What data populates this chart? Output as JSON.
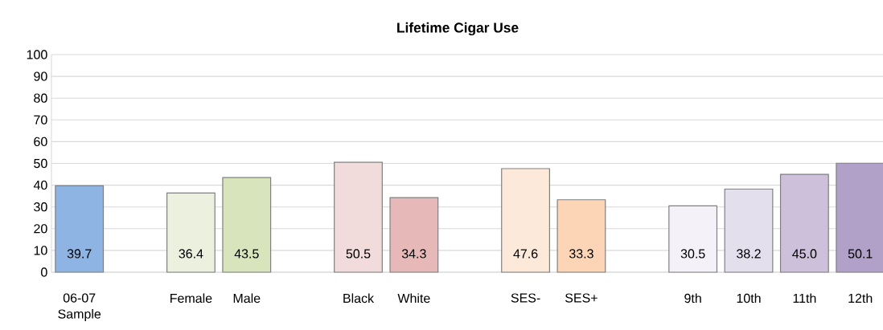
{
  "chart_data": {
    "type": "bar",
    "title": "Lifetime Cigar Use",
    "categories": [
      "06-07 Sample",
      null,
      "Female",
      "Male",
      null,
      "Black",
      "White",
      null,
      "SES-",
      "SES+",
      null,
      "9th",
      "10th",
      "11th",
      "12th"
    ],
    "values": [
      39.7,
      null,
      36.4,
      43.5,
      null,
      50.5,
      34.3,
      null,
      47.6,
      33.3,
      null,
      30.5,
      38.2,
      45.0,
      50.1
    ],
    "colors": [
      "#8db4e2",
      null,
      "#ebf1de",
      "#d7e4bc",
      null,
      "#f2dcdb",
      "#e6b9b8",
      null,
      "#fde9d9",
      "#fbd5b5",
      null,
      "#f4f2f8",
      "#e4dfec",
      "#ccc0da",
      "#b1a0c7"
    ],
    "ylim": [
      0,
      100
    ],
    "yticks": [
      0,
      10,
      20,
      30,
      40,
      50,
      60,
      70,
      80,
      90,
      100
    ],
    "value_labels": [
      "39.7",
      null,
      "36.4",
      "43.5",
      null,
      "50.5",
      "34.3",
      null,
      "47.6",
      "33.3",
      null,
      "30.5",
      "38.2",
      "45.0",
      "50.1"
    ],
    "grid": "y"
  }
}
